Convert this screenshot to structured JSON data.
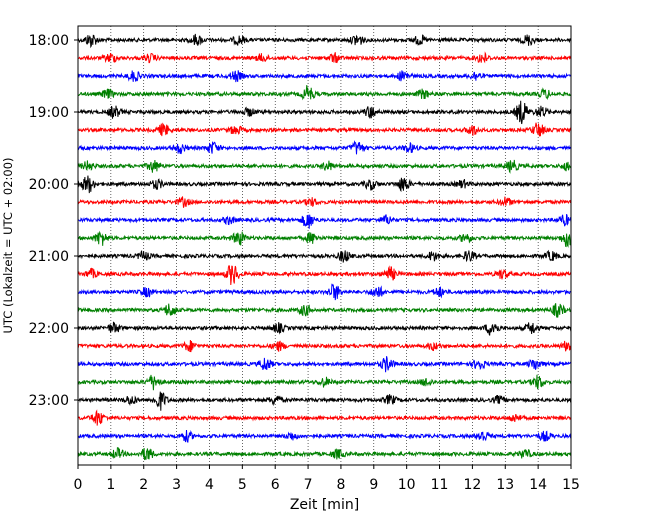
{
  "chart_data": {
    "type": "line",
    "title": "",
    "xlabel": "Zeit  [min]",
    "ylabel": "UTC (Lokalzeit = UTC + 02:00)",
    "xlim": [
      0,
      15
    ],
    "x_ticks": [
      0,
      1,
      2,
      3,
      4,
      5,
      6,
      7,
      8,
      9,
      10,
      11,
      12,
      13,
      14,
      15
    ],
    "y_tick_labels": [
      "18:00",
      "19:00",
      "20:00",
      "21:00",
      "22:00",
      "23:00"
    ],
    "y_tick_rows": [
      0,
      4,
      8,
      12,
      16,
      20
    ],
    "grid": "vertical dotted at each minute",
    "row_minutes": 15,
    "start_time": "18:00",
    "rows": 24,
    "trace_colors": [
      "#000000",
      "#ff0000",
      "#0000ff",
      "#008000"
    ],
    "bursts": [
      [
        [
          0.4,
          0.9
        ],
        [
          3.6,
          0.7
        ],
        [
          4.9,
          0.6
        ],
        [
          8.5,
          0.8
        ],
        [
          10.4,
          0.6
        ],
        [
          13.7,
          0.7
        ]
      ],
      [
        [
          1.0,
          0.6
        ],
        [
          2.2,
          0.5
        ],
        [
          5.6,
          0.5
        ],
        [
          7.8,
          0.6
        ],
        [
          12.3,
          0.7
        ]
      ],
      [
        [
          1.7,
          0.7
        ],
        [
          4.8,
          0.7
        ],
        [
          9.9,
          0.7
        ],
        [
          12.1,
          0.6
        ]
      ],
      [
        [
          0.9,
          0.6
        ],
        [
          7.0,
          1.1
        ],
        [
          10.5,
          0.6
        ],
        [
          14.2,
          0.6
        ]
      ],
      [
        [
          1.1,
          0.8
        ],
        [
          5.2,
          0.5
        ],
        [
          8.9,
          0.8
        ],
        [
          13.5,
          1.6
        ],
        [
          14.1,
          0.7
        ]
      ],
      [
        [
          2.6,
          0.8
        ],
        [
          4.8,
          0.6
        ],
        [
          12.0,
          0.7
        ],
        [
          14.0,
          1.0
        ]
      ],
      [
        [
          3.1,
          0.7
        ],
        [
          4.1,
          0.8
        ],
        [
          8.5,
          0.9
        ],
        [
          10.1,
          0.6
        ]
      ],
      [
        [
          0.3,
          0.6
        ],
        [
          2.3,
          0.8
        ],
        [
          7.6,
          0.6
        ],
        [
          13.2,
          0.8
        ],
        [
          14.9,
          0.6
        ]
      ],
      [
        [
          0.3,
          1.2
        ],
        [
          2.4,
          0.6
        ],
        [
          8.9,
          0.7
        ],
        [
          9.9,
          1.0
        ],
        [
          11.7,
          0.5
        ]
      ],
      [
        [
          3.2,
          0.6
        ],
        [
          7.1,
          0.5
        ],
        [
          13.0,
          0.6
        ]
      ],
      [
        [
          4.6,
          0.5
        ],
        [
          7.0,
          1.1
        ],
        [
          9.4,
          0.6
        ],
        [
          14.8,
          0.7
        ]
      ],
      [
        [
          0.7,
          1.0
        ],
        [
          4.9,
          1.0
        ],
        [
          7.1,
          0.7
        ],
        [
          11.8,
          0.6
        ],
        [
          14.9,
          1.2
        ]
      ],
      [
        [
          2.0,
          0.6
        ],
        [
          8.1,
          0.8
        ],
        [
          10.8,
          0.6
        ],
        [
          11.9,
          0.7
        ],
        [
          14.4,
          0.6
        ]
      ],
      [
        [
          0.4,
          0.6
        ],
        [
          4.7,
          1.5
        ],
        [
          9.5,
          0.9
        ],
        [
          12.9,
          0.6
        ]
      ],
      [
        [
          2.1,
          0.6
        ],
        [
          7.8,
          1.1
        ],
        [
          9.1,
          0.8
        ],
        [
          11.0,
          0.6
        ]
      ],
      [
        [
          2.8,
          0.9
        ],
        [
          6.9,
          0.7
        ],
        [
          14.6,
          0.9
        ]
      ],
      [
        [
          1.1,
          0.7
        ],
        [
          6.1,
          0.6
        ],
        [
          12.6,
          1.1
        ],
        [
          13.8,
          0.8
        ]
      ],
      [
        [
          3.4,
          0.7
        ],
        [
          6.1,
          0.6
        ],
        [
          10.8,
          0.5
        ],
        [
          14.9,
          0.7
        ]
      ],
      [
        [
          5.7,
          0.9
        ],
        [
          9.4,
          1.0
        ],
        [
          12.2,
          0.7
        ],
        [
          13.9,
          0.8
        ]
      ],
      [
        [
          2.3,
          1.0
        ],
        [
          7.5,
          0.6
        ],
        [
          10.6,
          0.5
        ],
        [
          14.0,
          0.9
        ]
      ],
      [
        [
          1.6,
          0.6
        ],
        [
          2.5,
          1.3
        ],
        [
          6.0,
          0.6
        ],
        [
          9.5,
          0.6
        ],
        [
          12.8,
          0.5
        ]
      ],
      [
        [
          0.6,
          1.0
        ],
        [
          13.3,
          0.5
        ]
      ],
      [
        [
          3.3,
          0.7
        ],
        [
          6.5,
          0.5
        ],
        [
          12.3,
          0.8
        ],
        [
          14.2,
          0.6
        ]
      ],
      [
        [
          1.2,
          0.7
        ],
        [
          2.1,
          0.9
        ],
        [
          7.9,
          0.6
        ],
        [
          13.6,
          0.6
        ]
      ]
    ]
  }
}
